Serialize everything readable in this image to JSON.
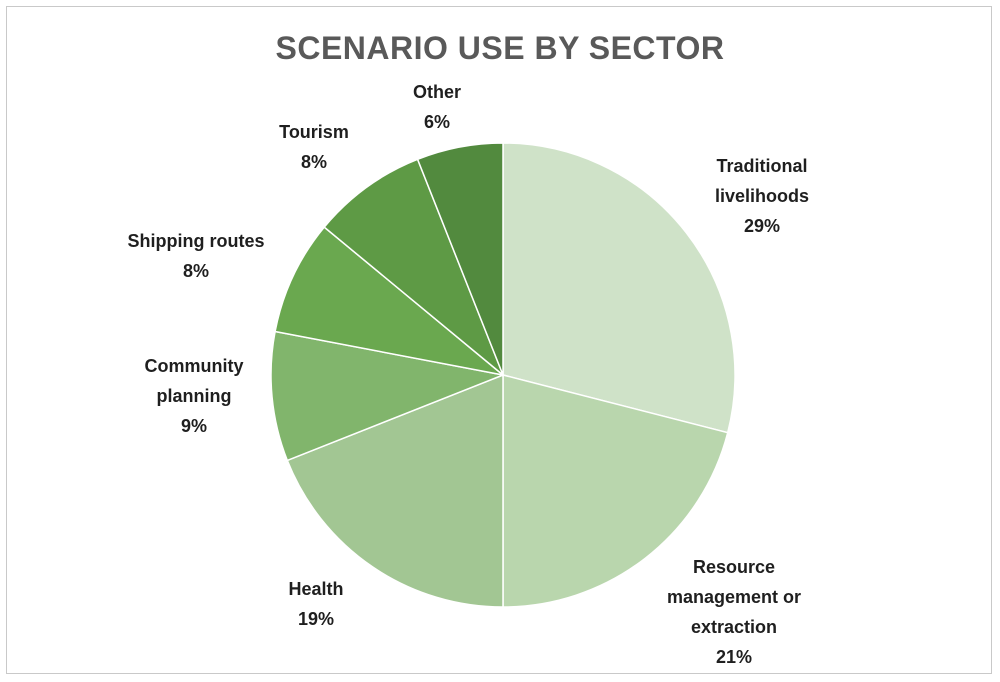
{
  "chart_data": {
    "type": "pie",
    "title": "SCENARIO USE BY SECTOR",
    "slices": [
      {
        "label": [
          "Traditional",
          "livelihoods"
        ],
        "value_label": "29%",
        "value": 29,
        "color": "#cfe2c8"
      },
      {
        "label": [
          "Resource",
          "management or",
          "extraction"
        ],
        "value_label": "21%",
        "value": 21,
        "color": "#b9d6ad"
      },
      {
        "label": [
          "Health"
        ],
        "value_label": "19%",
        "value": 19,
        "color": "#a2c693"
      },
      {
        "label": [
          "Community",
          "planning"
        ],
        "value_label": "9%",
        "value": 9,
        "color": "#81b56c"
      },
      {
        "label": [
          "Shipping routes"
        ],
        "value_label": "8%",
        "value": 8,
        "color": "#6aa84f"
      },
      {
        "label": [
          "Tourism"
        ],
        "value_label": "8%",
        "value": 8,
        "color": "#5e9a45"
      },
      {
        "label": [
          "Other"
        ],
        "value_label": "6%",
        "value": 6,
        "color": "#528a3e"
      }
    ],
    "legend": "none"
  }
}
